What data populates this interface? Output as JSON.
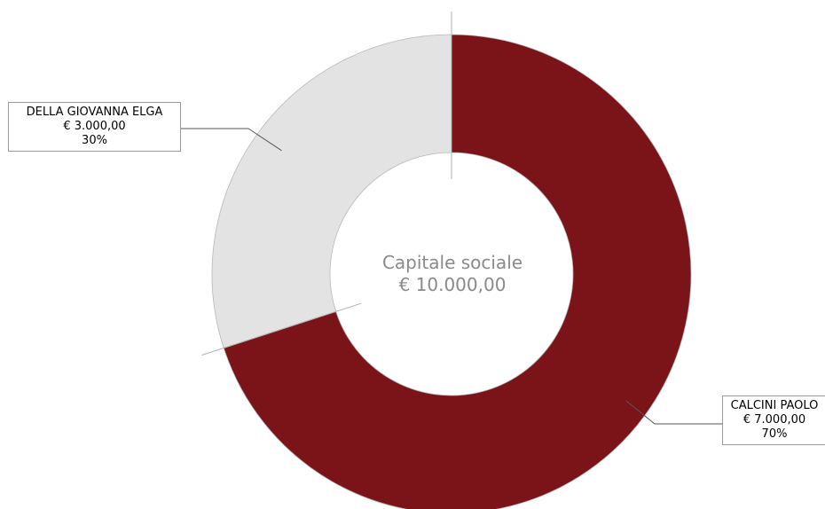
{
  "chart_data": {
    "type": "pie",
    "donut": true,
    "center_label": {
      "line1": "Capitale sociale",
      "line2": "€ 10.000,00"
    },
    "slices": [
      {
        "name": "DELLA GIOVANNA ELGA",
        "value": 3000,
        "value_label": "€ 3.000,00",
        "percent": 30,
        "percent_label": "30%",
        "color": "#e3e3e3"
      },
      {
        "name": "CALCINI PAOLO",
        "value": 7000,
        "value_label": "€ 7.000,00",
        "percent": 70,
        "percent_label": "70%",
        "color": "#7a1419"
      }
    ],
    "start_angle_deg": 0,
    "direction": "counterclockwise-from-top",
    "legend": "none"
  }
}
